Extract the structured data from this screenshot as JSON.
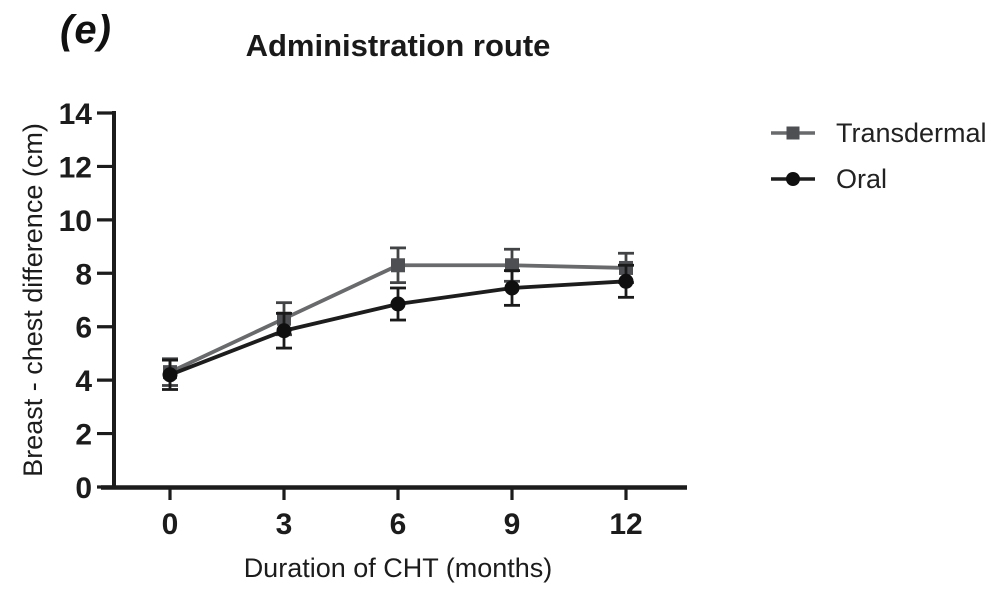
{
  "figure": {
    "panel_label": "(e)",
    "background_color": "#ffffff"
  },
  "chart_data": {
    "type": "line",
    "title": "Administration route",
    "xlabel": "Duration of CHT (months)",
    "ylabel": "Breast - chest difference (cm)",
    "x": [
      0,
      3,
      6,
      9,
      12
    ],
    "x_tick_labels": [
      "0",
      "3",
      "6",
      "9",
      "12"
    ],
    "y_tick_values": [
      0,
      2,
      4,
      6,
      8,
      10,
      12,
      14
    ],
    "ylim": [
      0,
      14
    ],
    "xlim": [
      -1.8,
      13.6
    ],
    "grid": false,
    "legend_position": "right-top",
    "axis_color": "#1c1c1c",
    "series": [
      {
        "name": "Transdermal",
        "marker": "square",
        "line_color": "#696a6c",
        "marker_color": "#4e4f52",
        "error_color": "#424345",
        "values": [
          4.3,
          6.3,
          8.3,
          8.3,
          8.2
        ],
        "errors": [
          0.5,
          0.6,
          0.65,
          0.6,
          0.55
        ]
      },
      {
        "name": "Oral",
        "marker": "circle",
        "line_color": "#1d1d1d",
        "marker_color": "#0f0f0f",
        "error_color": "#1a1a1a",
        "values": [
          4.2,
          5.85,
          6.85,
          7.45,
          7.7
        ],
        "errors": [
          0.55,
          0.65,
          0.6,
          0.65,
          0.6
        ]
      }
    ]
  }
}
